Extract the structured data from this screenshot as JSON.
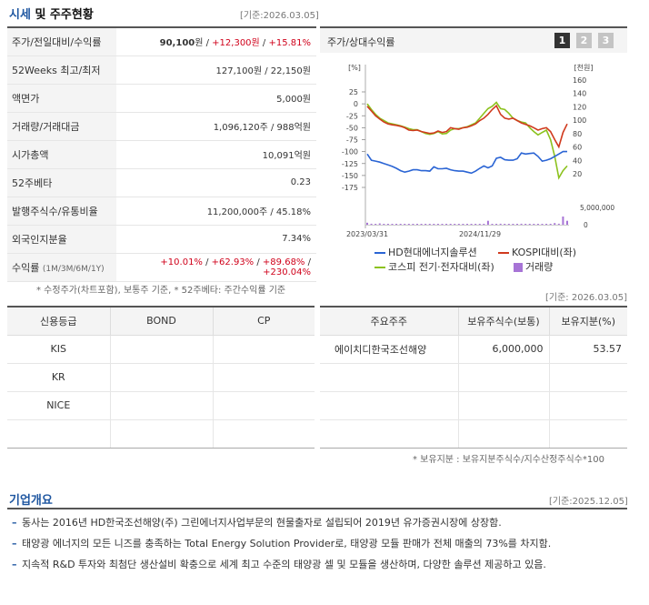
{
  "section1": {
    "title_accent": "시세",
    "title_rest": " 및 주주현황",
    "ref": "[기준:2026.03.05]"
  },
  "price_rows": [
    {
      "label": "주가/전일대비/수익률"
    },
    {
      "label": "52Weeks 최고/최저",
      "value": "127,100원 / 22,150원"
    },
    {
      "label": "액면가",
      "value": "5,000원"
    },
    {
      "label": "거래량/거래대금",
      "value": "1,096,120주 / 988억원"
    },
    {
      "label": "시가총액",
      "value": "10,091억원"
    },
    {
      "label": "52주베타",
      "value": "0.23"
    },
    {
      "label": "발행주식수/유통비율",
      "value": "11,200,000주 / 45.18%"
    },
    {
      "label": "외국인지분율",
      "value": "7.34%"
    },
    {
      "label": "수익률",
      "label_sub": "(1M/3M/6M/1Y)"
    }
  ],
  "price_main": {
    "price": "90,100",
    "unit": "원",
    "sep": " / ",
    "change": "+12,300원",
    "rate": "+15.81%"
  },
  "returns": {
    "m1": "+10.01%",
    "m3": "+62.93%",
    "m6": "+89.68%",
    "y1": "+230.04%",
    "sep": " / "
  },
  "price_note": "* 수정주가(차트포함), 보통주 기준, * 52주베타: 주간수익률 기준",
  "chart_header": {
    "title": "주가/상대수익률",
    "pages": [
      "1",
      "2",
      "3"
    ],
    "active_page": "1"
  },
  "chart_data": {
    "type": "line",
    "left_axis_unit": "[%]",
    "right_axis_unit": "[천원]",
    "left_ticks": [
      "25",
      "0",
      "-25",
      "-50",
      "-75",
      "-100",
      "-125",
      "-150",
      "-175"
    ],
    "right_ticks": [
      "160",
      "140",
      "120",
      "100",
      "80",
      "60",
      "40",
      "20"
    ],
    "ylim_left": [
      -175,
      25
    ],
    "ylim_right": [
      20,
      160
    ],
    "volume_ticks": [
      "5,000,000",
      "0"
    ],
    "volume_max": 5000000,
    "x_labels": [
      "2023/03/31",
      "2024/11/29"
    ],
    "n_points": 49,
    "series": [
      {
        "name": "HD현대에너지솔루션",
        "color": "#2a64d4",
        "axis": "left",
        "values": [
          -105,
          -118,
          -120,
          -122,
          -125,
          -128,
          -131,
          -135,
          -140,
          -143,
          -141,
          -138,
          -138,
          -140,
          -140,
          -141,
          -132,
          -136,
          -136,
          -135,
          -138,
          -140,
          -141,
          -141,
          -143,
          -145,
          -141,
          -135,
          -130,
          -134,
          -130,
          -114,
          -112,
          -117,
          -118,
          -118,
          -115,
          -103,
          -105,
          -104,
          -103,
          -110,
          -120,
          -118,
          -115,
          -110,
          -105,
          -100,
          -100
        ]
      },
      {
        "name": "KOSPI대비(좌)",
        "color": "#d03a1e",
        "axis": "left",
        "values": [
          -5,
          -15,
          -25,
          -32,
          -38,
          -42,
          -44,
          -45,
          -47,
          -50,
          -55,
          -56,
          -55,
          -58,
          -60,
          -62,
          -61,
          -57,
          -60,
          -58,
          -50,
          -52,
          -53,
          -50,
          -49,
          -46,
          -42,
          -35,
          -30,
          -22,
          -12,
          -4,
          -22,
          -30,
          -32,
          -30,
          -35,
          -40,
          -43,
          -46,
          -50,
          -55,
          -52,
          -50,
          -58,
          -75,
          -90,
          -60,
          -42
        ]
      },
      {
        "name": "코스피 전기·전자대비(좌)",
        "color": "#8cc21e",
        "axis": "left",
        "values": [
          0,
          -12,
          -22,
          -30,
          -35,
          -40,
          -42,
          -44,
          -46,
          -49,
          -52,
          -54,
          -54,
          -58,
          -62,
          -64,
          -62,
          -58,
          -63,
          -62,
          -55,
          -52,
          -52,
          -50,
          -48,
          -44,
          -40,
          -30,
          -20,
          -10,
          -5,
          3,
          -10,
          -12,
          -20,
          -30,
          -35,
          -38,
          -40,
          -50,
          -58,
          -65,
          -60,
          -55,
          -75,
          -110,
          -155,
          -140,
          -130
        ]
      },
      {
        "name": "거래량",
        "color": "#a774d6",
        "type": "volume",
        "values": [
          600000,
          300000,
          200000,
          400000,
          150000,
          100000,
          100000,
          100000,
          100000,
          120000,
          90000,
          150000,
          100000,
          100000,
          120000,
          100000,
          110000,
          80000,
          250000,
          150000,
          200000,
          100000,
          90000,
          80000,
          100000,
          110000,
          120000,
          100000,
          200000,
          1200000,
          100000,
          150000,
          300000,
          200000,
          100000,
          100000,
          150000,
          300000,
          200000,
          150000,
          100000,
          200000,
          150000,
          100000,
          200000,
          500000,
          300000,
          2500000,
          1200000
        ]
      }
    ]
  },
  "credit": {
    "headers": [
      "신용등급",
      "BOND",
      "CP"
    ],
    "rows": [
      [
        "KIS",
        "",
        ""
      ],
      [
        "KR",
        "",
        ""
      ],
      [
        "NICE",
        "",
        ""
      ],
      [
        "",
        "",
        ""
      ]
    ]
  },
  "holders": {
    "ref": "[기준: 2026.03.05]",
    "headers": [
      "주요주주",
      "보유주식수(보통)",
      "보유지분(%)"
    ],
    "rows": [
      [
        "에이치디한국조선해양",
        "6,000,000",
        "53.57"
      ],
      [
        "",
        "",
        ""
      ],
      [
        "",
        "",
        ""
      ],
      [
        "",
        "",
        ""
      ]
    ],
    "note": "* 보유지분 : 보유지분주식수/지수산정주식수*100"
  },
  "section2": {
    "title": "기업개요",
    "ref": "[기준:2025.12.05]",
    "items": [
      "동사는 2016년 HD한국조선해양(주) 그린에너지사업부문의 현물출자로 설립되어 2019년 유가증권시장에 상장함.",
      "태양광 에너지의 모든 니즈를 충족하는 Total Energy Solution Provider로, 태양광 모듈 판매가 전체 매출의 73%를 차지함.",
      "지속적 R&D 투자와 최첨단 생산설비 확충으로 세계 최고 수준의 태양광 셀 및 모듈을 생산하며, 다양한 솔루션 제공하고 있음."
    ]
  }
}
